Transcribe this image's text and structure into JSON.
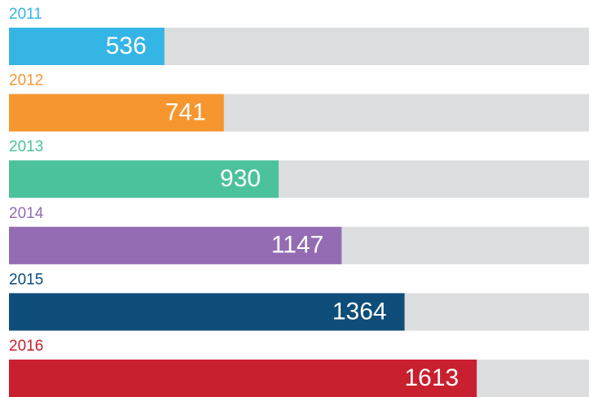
{
  "chart_data": {
    "type": "bar",
    "categories": [
      "2011",
      "2012",
      "2013",
      "2014",
      "2015",
      "2016"
    ],
    "values": [
      536,
      741,
      930,
      1147,
      1364,
      1613
    ],
    "colors": [
      "#35b5e5",
      "#f7962f",
      "#4cc29c",
      "#946cb3",
      "#0f4d7a",
      "#c8202f"
    ],
    "track_color": "#dcdddf",
    "xlim": [
      0,
      2000
    ]
  }
}
